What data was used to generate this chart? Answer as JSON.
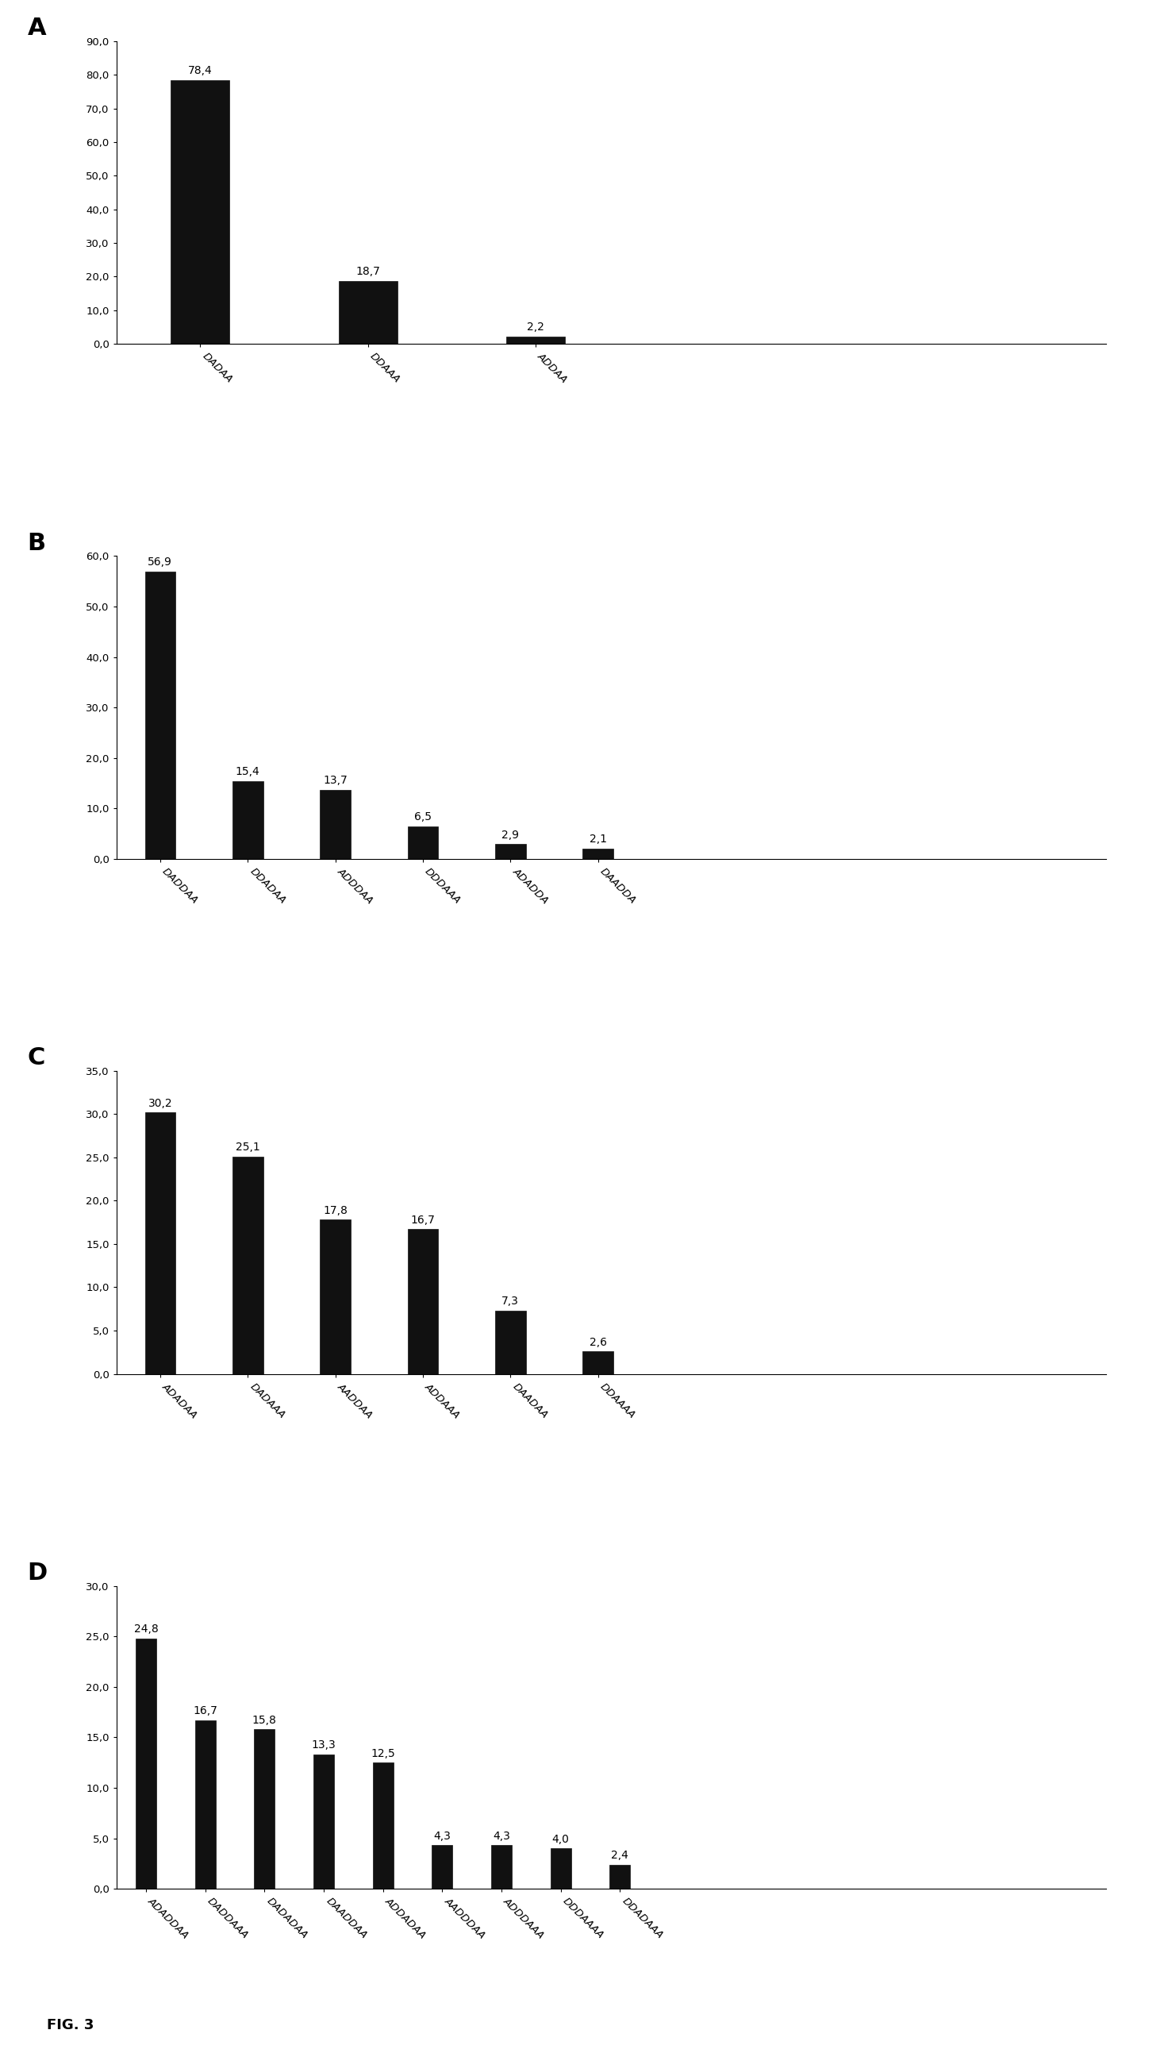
{
  "panels": [
    {
      "label": "A",
      "categories": [
        "DADAA",
        "DDAAA",
        "ADDAA"
      ],
      "values": [
        78.4,
        18.7,
        2.2
      ],
      "ylim": [
        0,
        90.0
      ],
      "yticks": [
        0.0,
        10.0,
        20.0,
        30.0,
        40.0,
        50.0,
        60.0,
        70.0,
        80.0,
        90.0
      ]
    },
    {
      "label": "B",
      "categories": [
        "DADDAA",
        "DDADAA",
        "ADDDAA",
        "DDDAAA",
        "ADADDA",
        "DAADDA"
      ],
      "values": [
        56.9,
        15.4,
        13.7,
        6.5,
        2.9,
        2.1
      ],
      "ylim": [
        0,
        60.0
      ],
      "yticks": [
        0.0,
        10.0,
        20.0,
        30.0,
        40.0,
        50.0,
        60.0
      ]
    },
    {
      "label": "C",
      "categories": [
        "ADADAA",
        "DADAAA",
        "AADDAA",
        "ADDAAA",
        "DAADAA",
        "DDAAAA"
      ],
      "values": [
        30.2,
        25.1,
        17.8,
        16.7,
        7.3,
        2.6
      ],
      "ylim": [
        0,
        35.0
      ],
      "yticks": [
        0.0,
        5.0,
        10.0,
        15.0,
        20.0,
        25.0,
        30.0,
        35.0
      ]
    },
    {
      "label": "D",
      "categories": [
        "ADADDAA",
        "DADDAAA",
        "DADADAA",
        "DAADDAA",
        "ADDADAA",
        "AADDDAA",
        "ADDDAAA",
        "DDDAAAA",
        "DDADAAA"
      ],
      "values": [
        24.8,
        16.7,
        15.8,
        13.3,
        12.5,
        4.3,
        4.3,
        4.0,
        2.4
      ],
      "ylim": [
        0,
        30.0
      ],
      "yticks": [
        0.0,
        5.0,
        10.0,
        15.0,
        20.0,
        25.0,
        30.0
      ]
    }
  ],
  "bar_color": "#111111",
  "bar_edge_color": "#111111",
  "background_color": "#ffffff",
  "panel_label_fontsize": 22,
  "value_fontsize": 10,
  "tick_fontsize": 9.5
}
